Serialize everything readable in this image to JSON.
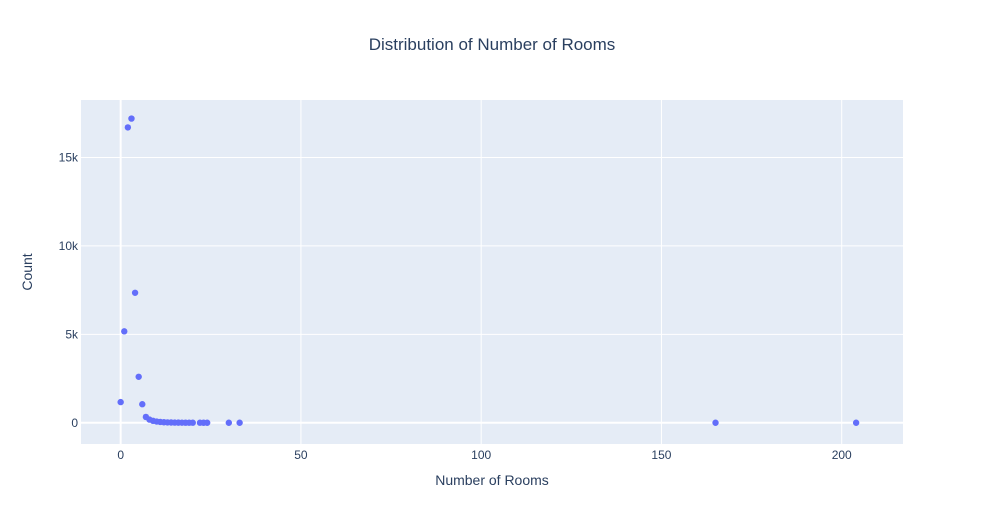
{
  "chart_data": {
    "type": "scatter",
    "title": "Distribution of Number of Rooms",
    "xlabel": "Number of Rooms",
    "ylabel": "Count",
    "xlim": [
      -11,
      217
    ],
    "ylim": [
      -1200,
      18250
    ],
    "x_ticks": [
      0,
      50,
      100,
      150,
      200
    ],
    "x_tick_labels": [
      "0",
      "50",
      "100",
      "150",
      "200"
    ],
    "y_ticks": [
      0,
      5000,
      10000,
      15000
    ],
    "y_tick_labels": [
      "0",
      "5k",
      "10k",
      "15k"
    ],
    "grid": true,
    "colors": {
      "plot_bg": "#e5ecf6",
      "grid": "#ffffff",
      "marker": "#636efa",
      "text": "#2a3f5f"
    },
    "series": [
      {
        "x": [
          0,
          1,
          2,
          3,
          4,
          5,
          6,
          7,
          8,
          9,
          10,
          11,
          12,
          13,
          14,
          15,
          16,
          17,
          18,
          19,
          20,
          22,
          23,
          24,
          30,
          33,
          165,
          204
        ],
        "y": [
          1170,
          5170,
          16700,
          17200,
          7350,
          2600,
          1050,
          330,
          180,
          110,
          70,
          45,
          30,
          20,
          15,
          10,
          8,
          6,
          5,
          4,
          3,
          3,
          2,
          2,
          1,
          1,
          1,
          1
        ]
      }
    ]
  }
}
